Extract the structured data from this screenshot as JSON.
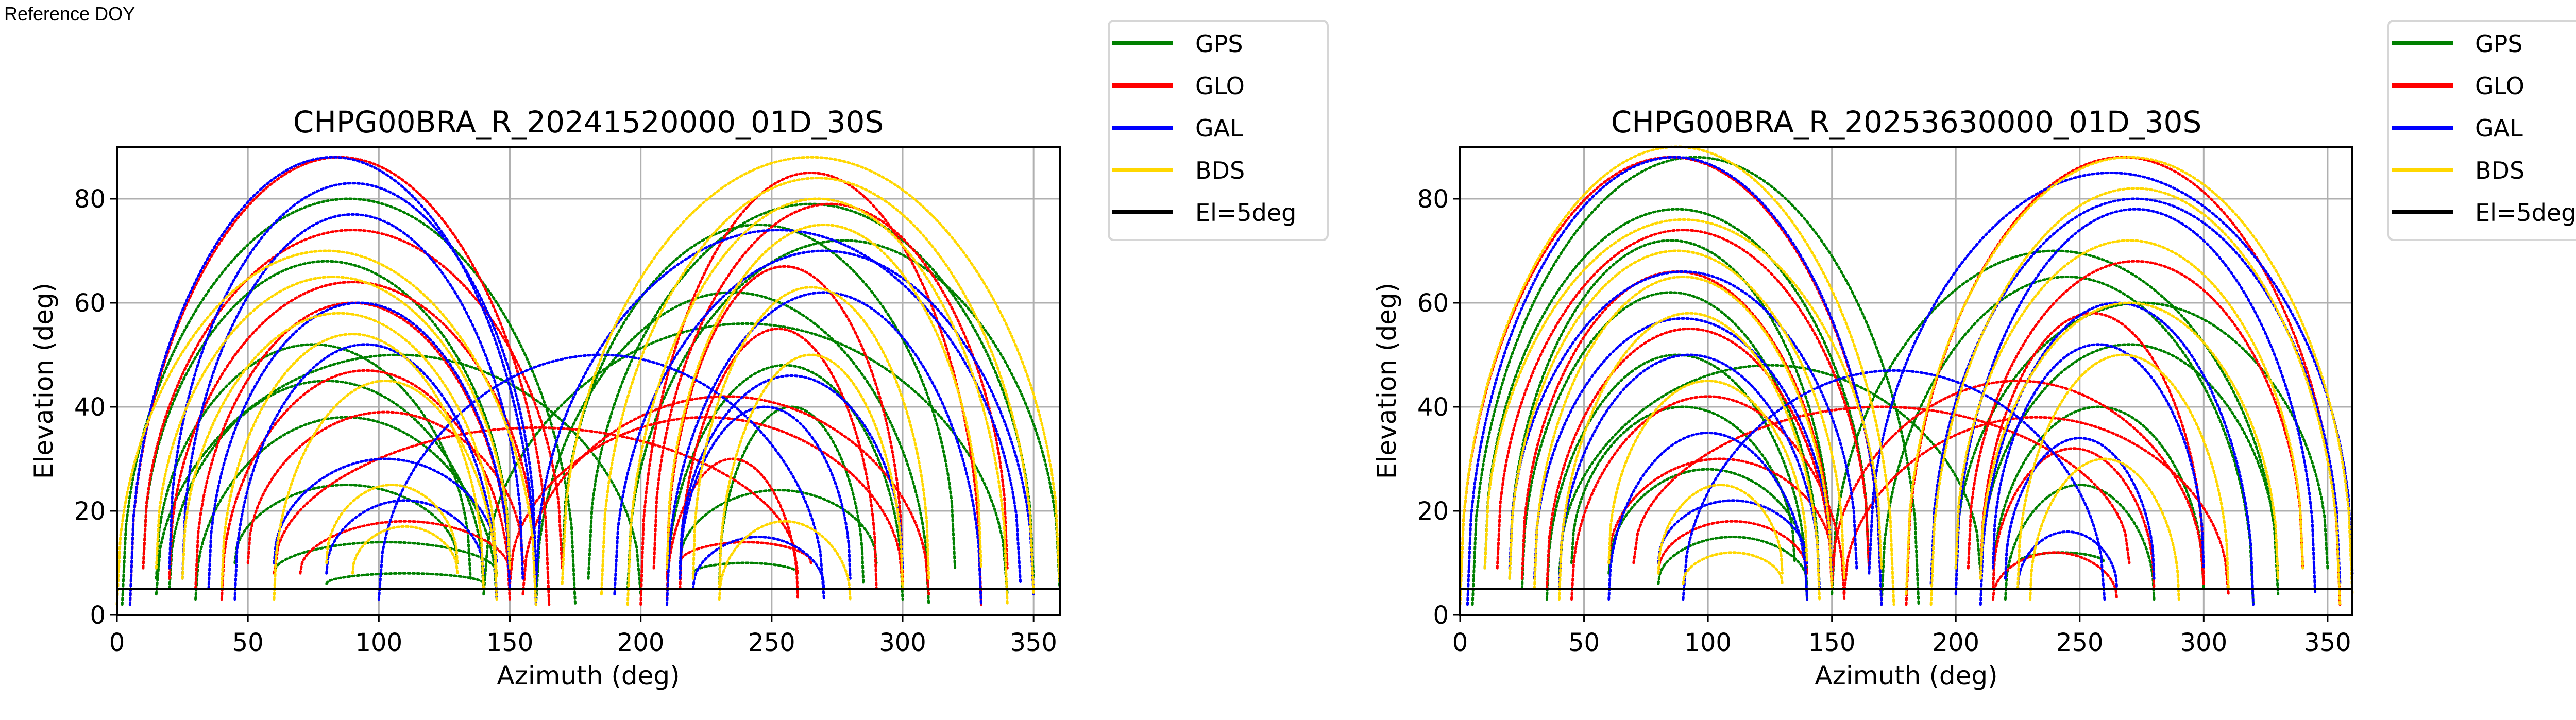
{
  "header": {
    "reference_label": "Reference DOY"
  },
  "chart_data": [
    {
      "type": "scatter",
      "title": "CHPG00BRA_R_20241520000_01D_30S",
      "xlabel": "Azimuth (deg)",
      "ylabel": "Elevation (deg)",
      "xlim": [
        0,
        360
      ],
      "ylim": [
        0,
        90
      ],
      "xticks": [
        0,
        50,
        100,
        150,
        200,
        250,
        300,
        350
      ],
      "yticks": [
        0,
        20,
        40,
        60,
        80
      ],
      "xtick_labels": [
        "0",
        "50",
        "100",
        "150",
        "200",
        "250",
        "300",
        "350"
      ],
      "ytick_labels": [
        "0",
        "20",
        "40",
        "60",
        "80"
      ],
      "grid": true,
      "legend_placement": "outside-top-right",
      "reference_line": {
        "name": "El=5deg",
        "y": 5,
        "color": "#000000"
      },
      "series": [
        {
          "name": "GPS",
          "color": "#008000",
          "tracks_az_start_az_end_peak_el": [
            [
              2,
              175,
              80
            ],
            [
              10,
              150,
              68
            ],
            [
              15,
              135,
              52
            ],
            [
              20,
              140,
              45
            ],
            [
              30,
              145,
              38
            ],
            [
              45,
              130,
              25
            ],
            [
              60,
              145,
              14
            ],
            [
              80,
              140,
              8
            ],
            [
              140,
              340,
              56
            ],
            [
              160,
              310,
              62
            ],
            [
              170,
              320,
              75
            ],
            [
              180,
              350,
              79
            ],
            [
              195,
              360,
              72
            ],
            [
              210,
              300,
              48
            ],
            [
              215,
              290,
              24
            ],
            [
              220,
              260,
              10
            ],
            [
              230,
              285,
              40
            ],
            [
              15,
              200,
              50
            ]
          ]
        },
        {
          "name": "GLO",
          "color": "#ff0000",
          "tracks_az_start_az_end_peak_el": [
            [
              5,
              165,
              88
            ],
            [
              10,
              170,
              74
            ],
            [
              20,
              160,
              64
            ],
            [
              30,
              150,
              60
            ],
            [
              40,
              150,
              47
            ],
            [
              50,
              155,
              39
            ],
            [
              70,
              150,
              18
            ],
            [
              150,
              300,
              38
            ],
            [
              155,
              310,
              42
            ],
            [
              200,
              330,
              85
            ],
            [
              205,
              340,
              79
            ],
            [
              210,
              300,
              67
            ],
            [
              215,
              290,
              55
            ],
            [
              210,
              260,
              30
            ],
            [
              215,
              265,
              14
            ],
            [
              60,
              260,
              36
            ]
          ]
        },
        {
          "name": "GAL",
          "color": "#0000ff",
          "tracks_az_start_az_end_peak_el": [
            [
              5,
              160,
              88
            ],
            [
              20,
              160,
              83
            ],
            [
              25,
              155,
              77
            ],
            [
              35,
              150,
              60
            ],
            [
              45,
              145,
              52
            ],
            [
              60,
              145,
              30
            ],
            [
              80,
              140,
              22
            ],
            [
              160,
              345,
              74
            ],
            [
              190,
              350,
              70
            ],
            [
              210,
              330,
              62
            ],
            [
              215,
              300,
              46
            ],
            [
              215,
              280,
              40
            ],
            [
              220,
              270,
              15
            ],
            [
              100,
              270,
              50
            ]
          ]
        },
        {
          "name": "BDS",
          "color": "#ffd700",
          "tracks_az_start_az_end_peak_el": [
            [
              0,
              160,
              70
            ],
            [
              15,
              150,
              65
            ],
            [
              25,
              145,
              58
            ],
            [
              40,
              140,
              54
            ],
            [
              60,
              145,
              45
            ],
            [
              80,
              130,
              25
            ],
            [
              90,
              130,
              17
            ],
            [
              170,
              360,
              88
            ],
            [
              185,
              350,
              84
            ],
            [
              195,
              340,
              80
            ],
            [
              210,
              330,
              75
            ],
            [
              220,
              310,
              63
            ],
            [
              230,
              300,
              50
            ],
            [
              230,
              280,
              18
            ]
          ]
        }
      ]
    },
    {
      "type": "scatter",
      "title": "CHPG00BRA_R_20253630000_01D_30S",
      "xlabel": "Azimuth (deg)",
      "ylabel": "Elevation (deg)",
      "xlim": [
        0,
        360
      ],
      "ylim": [
        0,
        90
      ],
      "xticks": [
        0,
        50,
        100,
        150,
        200,
        250,
        300,
        350
      ],
      "yticks": [
        0,
        20,
        40,
        60,
        80
      ],
      "xtick_labels": [
        "0",
        "50",
        "100",
        "150",
        "200",
        "250",
        "300",
        "350"
      ],
      "ytick_labels": [
        "0",
        "20",
        "40",
        "60",
        "80"
      ],
      "grid": true,
      "legend_placement": "outside-top-right",
      "reference_line": {
        "name": "El=5deg",
        "y": 5,
        "color": "#000000"
      },
      "series": [
        {
          "name": "GPS",
          "color": "#008000",
          "tracks_az_start_az_end_peak_el": [
            [
              5,
              185,
              88
            ],
            [
              10,
              165,
              78
            ],
            [
              20,
              150,
              72
            ],
            [
              25,
              145,
              62
            ],
            [
              35,
              140,
              50
            ],
            [
              45,
              135,
              40
            ],
            [
              60,
              140,
              28
            ],
            [
              80,
              140,
              15
            ],
            [
              150,
              330,
              70
            ],
            [
              170,
              320,
              65
            ],
            [
              200,
              350,
              60
            ],
            [
              210,
              330,
              52
            ],
            [
              215,
              300,
              40
            ],
            [
              220,
              280,
              25
            ],
            [
              225,
              260,
              12
            ],
            [
              40,
              210,
              48
            ]
          ]
        },
        {
          "name": "GLO",
          "color": "#ff0000",
          "tracks_az_start_az_end_peak_el": [
            [
              0,
              170,
              88
            ],
            [
              15,
              165,
              74
            ],
            [
              25,
              150,
              66
            ],
            [
              35,
              150,
              55
            ],
            [
              45,
              155,
              42
            ],
            [
              60,
              150,
              30
            ],
            [
              80,
              140,
              18
            ],
            [
              150,
              300,
              45
            ],
            [
              155,
              310,
              38
            ],
            [
              180,
              355,
              88
            ],
            [
              205,
              340,
              68
            ],
            [
              210,
              300,
              58
            ],
            [
              215,
              280,
              32
            ],
            [
              215,
              265,
              12
            ],
            [
              70,
              270,
              40
            ]
          ]
        },
        {
          "name": "GAL",
          "color": "#0000ff",
          "tracks_az_start_az_end_peak_el": [
            [
              3,
              170,
              88
            ],
            [
              20,
              160,
              66
            ],
            [
              30,
              150,
              57
            ],
            [
              40,
              145,
              50
            ],
            [
              60,
              140,
              35
            ],
            [
              80,
              140,
              22
            ],
            [
              165,
              360,
              85
            ],
            [
              190,
              355,
              80
            ],
            [
              200,
              345,
              78
            ],
            [
              210,
              320,
              60
            ],
            [
              215,
              300,
              52
            ],
            [
              220,
              280,
              34
            ],
            [
              225,
              265,
              16
            ],
            [
              90,
              260,
              47
            ]
          ]
        },
        {
          "name": "BDS",
          "color": "#ffd700",
          "tracks_az_start_az_end_peak_el": [
            [
              0,
              175,
              90
            ],
            [
              10,
              170,
              76
            ],
            [
              20,
              155,
              70
            ],
            [
              30,
              150,
              65
            ],
            [
              40,
              145,
              58
            ],
            [
              60,
              140,
              45
            ],
            [
              80,
              130,
              25
            ],
            [
              90,
              130,
              12
            ],
            [
              180,
              360,
              88
            ],
            [
              190,
              355,
              82
            ],
            [
              200,
              340,
              72
            ],
            [
              210,
              330,
              60
            ],
            [
              225,
              310,
              50
            ],
            [
              230,
              290,
              30
            ]
          ]
        }
      ]
    }
  ]
}
